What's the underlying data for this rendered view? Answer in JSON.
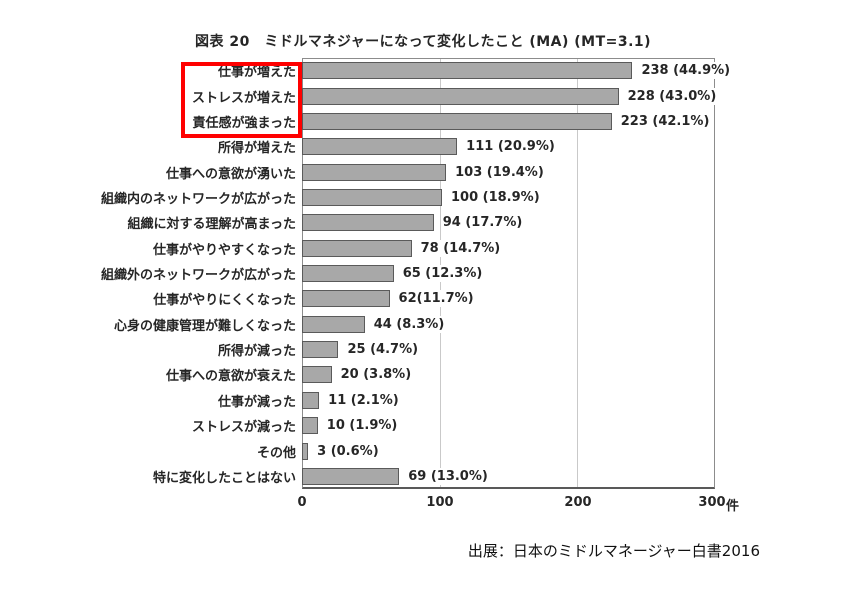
{
  "figure": {
    "title": "図表 20　ミドルマネジャーになって変化したこと (MA) (MT=3.1)",
    "source": "出展：日本のミドルマネージャー白書2016"
  },
  "axis": {
    "ticks": [
      "0",
      "100",
      "200",
      "300"
    ],
    "unit": "件"
  },
  "chart_data": {
    "type": "bar",
    "orientation": "horizontal",
    "title": "図表 20　ミドルマネジャーになって変化したこと (MA) (MT=3.1)",
    "xlabel": "件",
    "xlim": [
      0,
      300
    ],
    "x_ticks": [
      0,
      100,
      200,
      300
    ],
    "grid": "vertical gridlines at 100 and 200",
    "legend": "none",
    "bar_color": "#a8a8a8",
    "bar_border_color": "#5a5a5a",
    "highlight": {
      "type": "red-outline-box",
      "color": "#ff0000",
      "categories": [
        "仕事が増えた",
        "ストレスが増えた",
        "責任感が強まった"
      ]
    },
    "rows": [
      {
        "label": "仕事が増えた",
        "value": 238,
        "value_label": "238 (44.9%)"
      },
      {
        "label": "ストレスが増えた",
        "value": 228,
        "value_label": "228 (43.0%)"
      },
      {
        "label": "責任感が強まった",
        "value": 223,
        "value_label": "223 (42.1%)"
      },
      {
        "label": "所得が増えた",
        "value": 111,
        "value_label": "111 (20.9%)"
      },
      {
        "label": "仕事への意欲が湧いた",
        "value": 103,
        "value_label": "103 (19.4%)"
      },
      {
        "label": "組織内のネットワークが広がった",
        "value": 100,
        "value_label": "100 (18.9%)"
      },
      {
        "label": "組織に対する理解が高まった",
        "value": 94,
        "value_label": "94 (17.7%)"
      },
      {
        "label": "仕事がやりやすくなった",
        "value": 78,
        "value_label": "78 (14.7%)"
      },
      {
        "label": "組織外のネットワークが広がった",
        "value": 65,
        "value_label": "65 (12.3%)"
      },
      {
        "label": "仕事がやりにくくなった",
        "value": 62,
        "value_label": "62(11.7%)"
      },
      {
        "label": "心身の健康管理が難しくなった",
        "value": 44,
        "value_label": "44 (8.3%)"
      },
      {
        "label": "所得が減った",
        "value": 25,
        "value_label": "25 (4.7%)"
      },
      {
        "label": "仕事への意欲が衰えた",
        "value": 20,
        "value_label": "20 (3.8%)"
      },
      {
        "label": "仕事が減った",
        "value": 11,
        "value_label": "11 (2.1%)"
      },
      {
        "label": "ストレスが減った",
        "value": 10,
        "value_label": "10 (1.9%)"
      },
      {
        "label": "その他",
        "value": 3,
        "value_label": "3 (0.6%)"
      },
      {
        "label": "特に変化したことはない",
        "value": 69,
        "value_label": "69 (13.0%)"
      }
    ]
  }
}
